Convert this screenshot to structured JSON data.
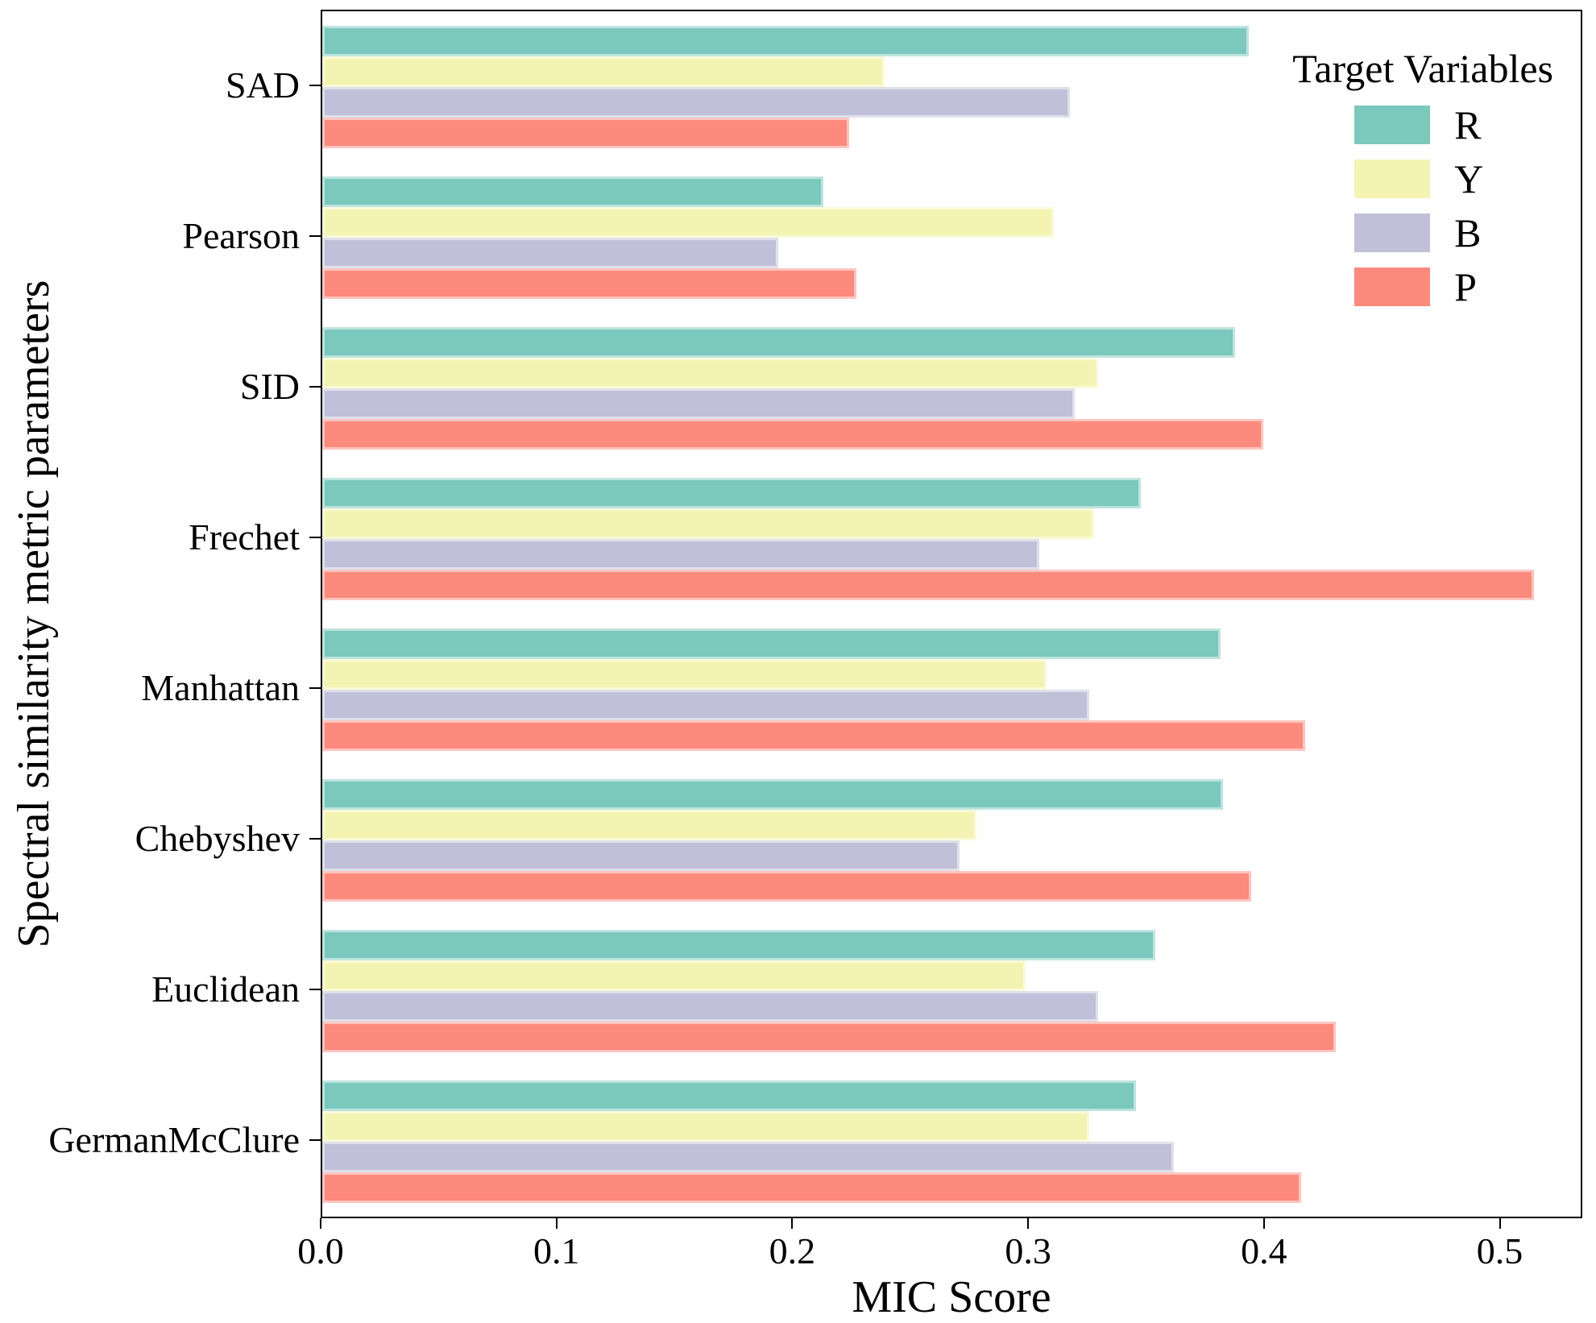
{
  "chart_data": {
    "type": "bar",
    "orientation": "horizontal",
    "title": "",
    "xlabel": "MIC Score",
    "ylabel": "Spectral similarity metric parameters",
    "xlim": [
      0,
      0.535
    ],
    "xticks": [
      0.0,
      0.1,
      0.2,
      0.3,
      0.4,
      0.5
    ],
    "xtick_labels": [
      "0.0",
      "0.1",
      "0.2",
      "0.3",
      "0.4",
      "0.5"
    ],
    "grid": false,
    "categories": [
      "SAD",
      "Pearson",
      "SID",
      "Frechet",
      "Manhattan",
      "Chebyshev",
      "Euclidean",
      "GermanMcClure"
    ],
    "series": [
      {
        "name": "R",
        "color": "#7bc8bd",
        "values": [
          0.394,
          0.213,
          0.388,
          0.348,
          0.382,
          0.383,
          0.354,
          0.346
        ]
      },
      {
        "name": "Y",
        "color": "#f4f4b2",
        "values": [
          0.239,
          0.311,
          0.33,
          0.328,
          0.308,
          0.278,
          0.299,
          0.326
        ]
      },
      {
        "name": "B",
        "color": "#c1c0d9",
        "values": [
          0.318,
          0.194,
          0.32,
          0.305,
          0.326,
          0.271,
          0.33,
          0.362
        ]
      },
      {
        "name": "P",
        "color": "#fc8a7d",
        "values": [
          0.224,
          0.227,
          0.4,
          0.515,
          0.418,
          0.395,
          0.431,
          0.416
        ]
      }
    ],
    "legend": {
      "title": "Target Variables",
      "position": "top-right",
      "entries": [
        "R",
        "Y",
        "B",
        "P"
      ]
    },
    "axis_color": "#000000"
  }
}
